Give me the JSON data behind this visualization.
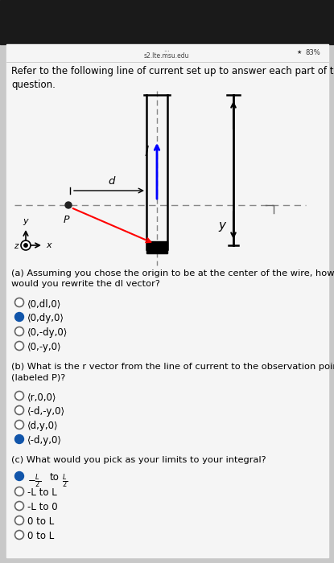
{
  "bg_top_color": "#1a1a1a",
  "bg_main_color": "#c8c8c8",
  "white_bg": "#f5f5f5",
  "status_url": "s2.lte.msu.edu",
  "status_pct": "83%",
  "title_text": "Refer to the following line of current set up to answer each part of this\nquestion.",
  "part_a_question": "(a) Assuming you chose the origin to be at the center of the wire, how\nwould you rewrite the dl vector?",
  "part_a_options": [
    {
      "text": "⟨0,dl,0⟩",
      "selected": false
    },
    {
      "text": "⟨0,dy,0⟩",
      "selected": true
    },
    {
      "text": "⟨0,-dy,0⟩",
      "selected": false
    },
    {
      "text": "⟨0,-y,0⟩",
      "selected": false
    }
  ],
  "part_b_question": "(b) What is the r vector from the line of current to the observation point\n(labeled P)?",
  "part_b_options": [
    {
      "text": "⟨r,0,0⟩",
      "selected": false
    },
    {
      "text": "⟨-d,-y,0⟩",
      "selected": false
    },
    {
      "text": "⟨d,y,0⟩",
      "selected": false
    },
    {
      "text": "⟨-d,y,0⟩",
      "selected": true
    }
  ],
  "part_c_question": "(c) What would you pick as your limits to your integral?",
  "part_c_options": [
    {
      "text": "-L/2 to L/2",
      "selected": true
    },
    {
      "text": "-L to L",
      "selected": false
    },
    {
      "text": "-L to 0",
      "selected": false
    },
    {
      "text": "0 to L",
      "selected": false
    }
  ]
}
